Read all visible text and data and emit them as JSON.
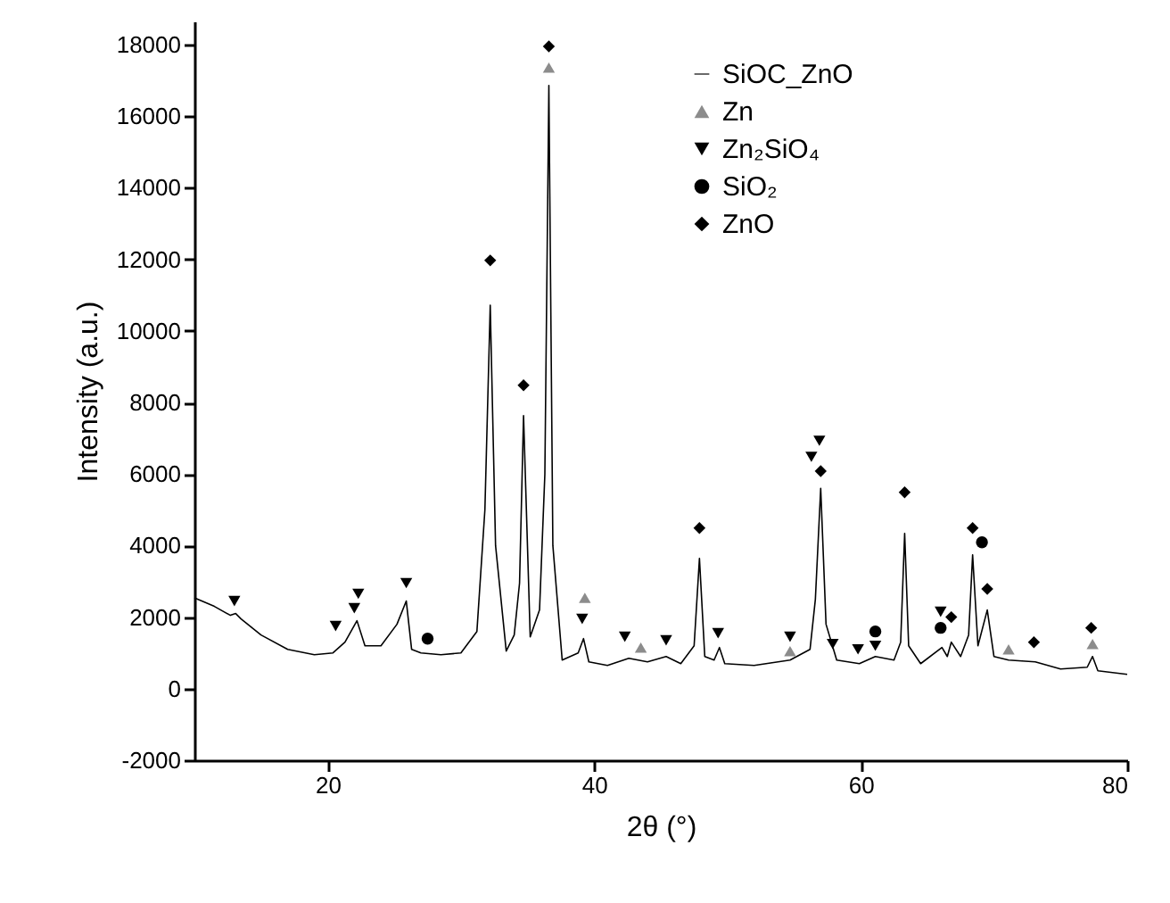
{
  "chart_data": {
    "type": "line",
    "xlabel": "2θ (°)",
    "ylabel": "Intensity (a.u.)",
    "xlim": [
      10,
      80
    ],
    "xticks": [
      20,
      40,
      60,
      80
    ],
    "ylim": [
      -2000,
      18650
    ],
    "yticks": [
      -2000,
      0,
      2000,
      4000,
      6000,
      8000,
      10000,
      12000,
      14000,
      16000,
      18000
    ],
    "grid": false,
    "legend": "top right",
    "series": [
      {
        "name": "SiOC_ZnO",
        "color": "#000000",
        "line_style": "solid",
        "x": [
          10,
          11.5,
          12.7,
          13.1,
          13.5,
          15,
          17,
          19,
          20.4,
          20.7,
          21.3,
          22.2,
          22.8,
          24,
          25.2,
          25.9,
          26.3,
          27,
          28.5,
          30,
          31.2,
          31.8,
          32.2,
          32.6,
          33.4,
          34.0,
          34.4,
          34.7,
          35.2,
          35.9,
          36.3,
          36.6,
          36.9,
          37.6,
          38.8,
          39.2,
          39.6,
          41,
          42.6,
          44,
          45.4,
          46.5,
          47.5,
          47.9,
          48.3,
          49.0,
          49.4,
          49.8,
          52,
          54.7,
          56.2,
          56.6,
          57.0,
          57.4,
          58.2,
          59.9,
          61.1,
          62.5,
          63.0,
          63.3,
          63.6,
          64.5,
          66.1,
          66.5,
          66.8,
          67.5,
          68.1,
          68.4,
          68.8,
          69.5,
          70.0,
          71.1,
          73.1,
          75,
          77.0,
          77.4,
          77.8,
          80
        ],
        "values": [
          2540,
          2300,
          2050,
          2100,
          1950,
          1500,
          1100,
          950,
          1000,
          1100,
          1300,
          1900,
          1200,
          1200,
          1800,
          2450,
          1100,
          1000,
          950,
          1000,
          1600,
          5000,
          10720,
          4000,
          1050,
          1500,
          2950,
          7630,
          1450,
          2200,
          6000,
          16860,
          4000,
          800,
          1000,
          1400,
          750,
          650,
          850,
          750,
          900,
          700,
          1200,
          3640,
          900,
          800,
          1150,
          700,
          650,
          800,
          1100,
          2500,
          5600,
          1800,
          800,
          700,
          900,
          800,
          1300,
          4340,
          1200,
          700,
          1150,
          900,
          1300,
          900,
          1500,
          3740,
          1200,
          2200,
          900,
          800,
          750,
          550,
          600,
          900,
          500,
          400
        ]
      },
      {
        "name": "Zn",
        "type": "scatter",
        "marker": "triangle",
        "color": "#8c8c8c",
        "x": [
          36.6,
          39.3,
          43.5,
          54.7,
          71.1,
          77.4
        ],
        "values": [
          17360,
          2540,
          1150,
          1050,
          1100,
          1250
        ]
      },
      {
        "name": "Zn₂SiO₄",
        "type": "scatter",
        "marker": "triangle-down",
        "color": "#000000",
        "x": [
          13.0,
          20.6,
          22.0,
          22.3,
          25.9,
          39.1,
          42.3,
          45.4,
          49.3,
          54.7,
          56.3,
          56.9,
          57.9,
          59.8,
          61.1,
          66.0
        ],
        "values": [
          2450,
          1750,
          2250,
          2650,
          2950,
          1950,
          1450,
          1350,
          1550,
          1450,
          6480,
          6930,
          1250,
          1100,
          1200,
          2150
        ]
      },
      {
        "name": "SiO₂",
        "type": "scatter",
        "marker": "circle",
        "color": "#000000",
        "x": [
          27.5,
          61.1,
          66.0,
          69.1
        ],
        "values": [
          1400,
          1600,
          1700,
          4090
        ]
      },
      {
        "name": "ZnO",
        "type": "scatter",
        "marker": "diamond",
        "color": "#000000",
        "x": [
          32.2,
          34.7,
          36.6,
          47.9,
          57.0,
          63.3,
          66.8,
          68.4,
          69.5,
          73.0,
          77.3
        ],
        "values": [
          11970,
          8480,
          17950,
          4490,
          6080,
          5490,
          2000,
          4490,
          2790,
          1300,
          1700
        ]
      }
    ]
  }
}
